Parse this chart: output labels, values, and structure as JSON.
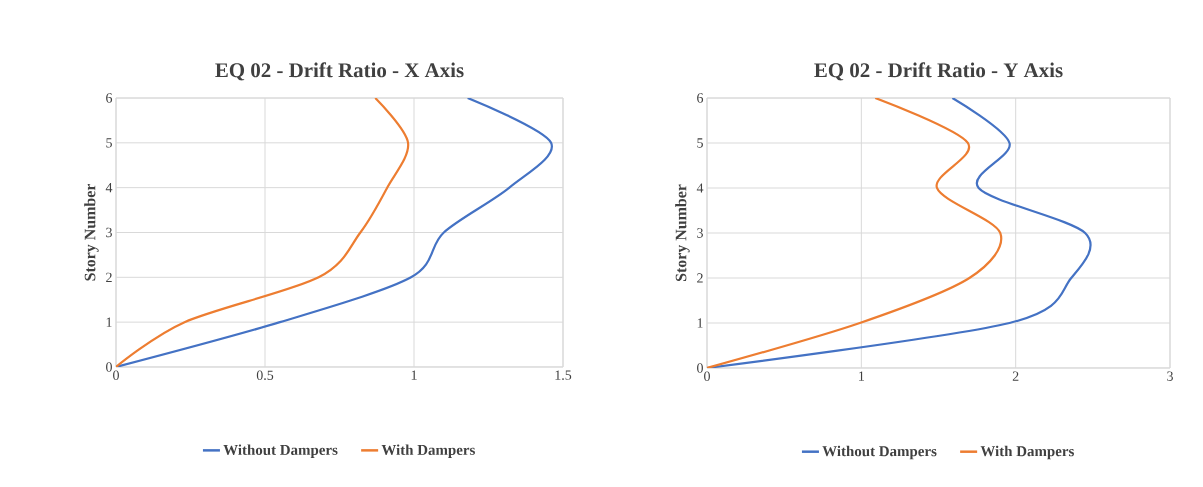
{
  "chart_data": [
    {
      "type": "line",
      "title": "EQ 02 - Drift Ratio - X Axis",
      "ylabel": "Story Number",
      "xlim": [
        0,
        1.5
      ],
      "xticks": [
        0,
        0.5,
        1,
        1.5
      ],
      "ylim": [
        0,
        6
      ],
      "yticks": [
        0,
        1,
        2,
        3,
        4,
        5,
        6
      ],
      "grid": true,
      "legend": "bottom",
      "series": [
        {
          "name": "Without Dampers",
          "color": "#4472c4",
          "x": [
            0,
            0.55,
            0.99,
            1.1,
            1.32,
            1.46,
            1.18
          ],
          "values": [
            0,
            1,
            2,
            3,
            4,
            5,
            6
          ]
        },
        {
          "name": "With Dampers",
          "color": "#ed7d31",
          "x": [
            0,
            0.23,
            0.68,
            0.82,
            0.91,
            0.98,
            0.87
          ],
          "values": [
            0,
            1,
            2,
            3,
            4,
            5,
            6
          ]
        }
      ]
    },
    {
      "type": "line",
      "title": "EQ 02 - Drift Ratio - Y Axis",
      "ylabel": "Story Number",
      "xlim": [
        0,
        3
      ],
      "xticks": [
        0,
        1,
        2,
        3
      ],
      "ylim": [
        0,
        6
      ],
      "yticks": [
        0,
        1,
        2,
        3,
        4,
        5,
        6
      ],
      "grid": true,
      "legend": "bottom",
      "series": [
        {
          "name": "Without Dampers",
          "color": "#4472c4",
          "x": [
            0,
            1.96,
            2.36,
            2.45,
            1.76,
            1.96,
            1.59
          ],
          "values": [
            0,
            1,
            2,
            3,
            4,
            5,
            6
          ]
        },
        {
          "name": "With Dampers",
          "color": "#ed7d31",
          "x": [
            0,
            0.99,
            1.7,
            1.9,
            1.49,
            1.69,
            1.09
          ],
          "values": [
            0,
            1,
            2,
            3,
            4,
            5,
            6
          ]
        }
      ]
    }
  ]
}
